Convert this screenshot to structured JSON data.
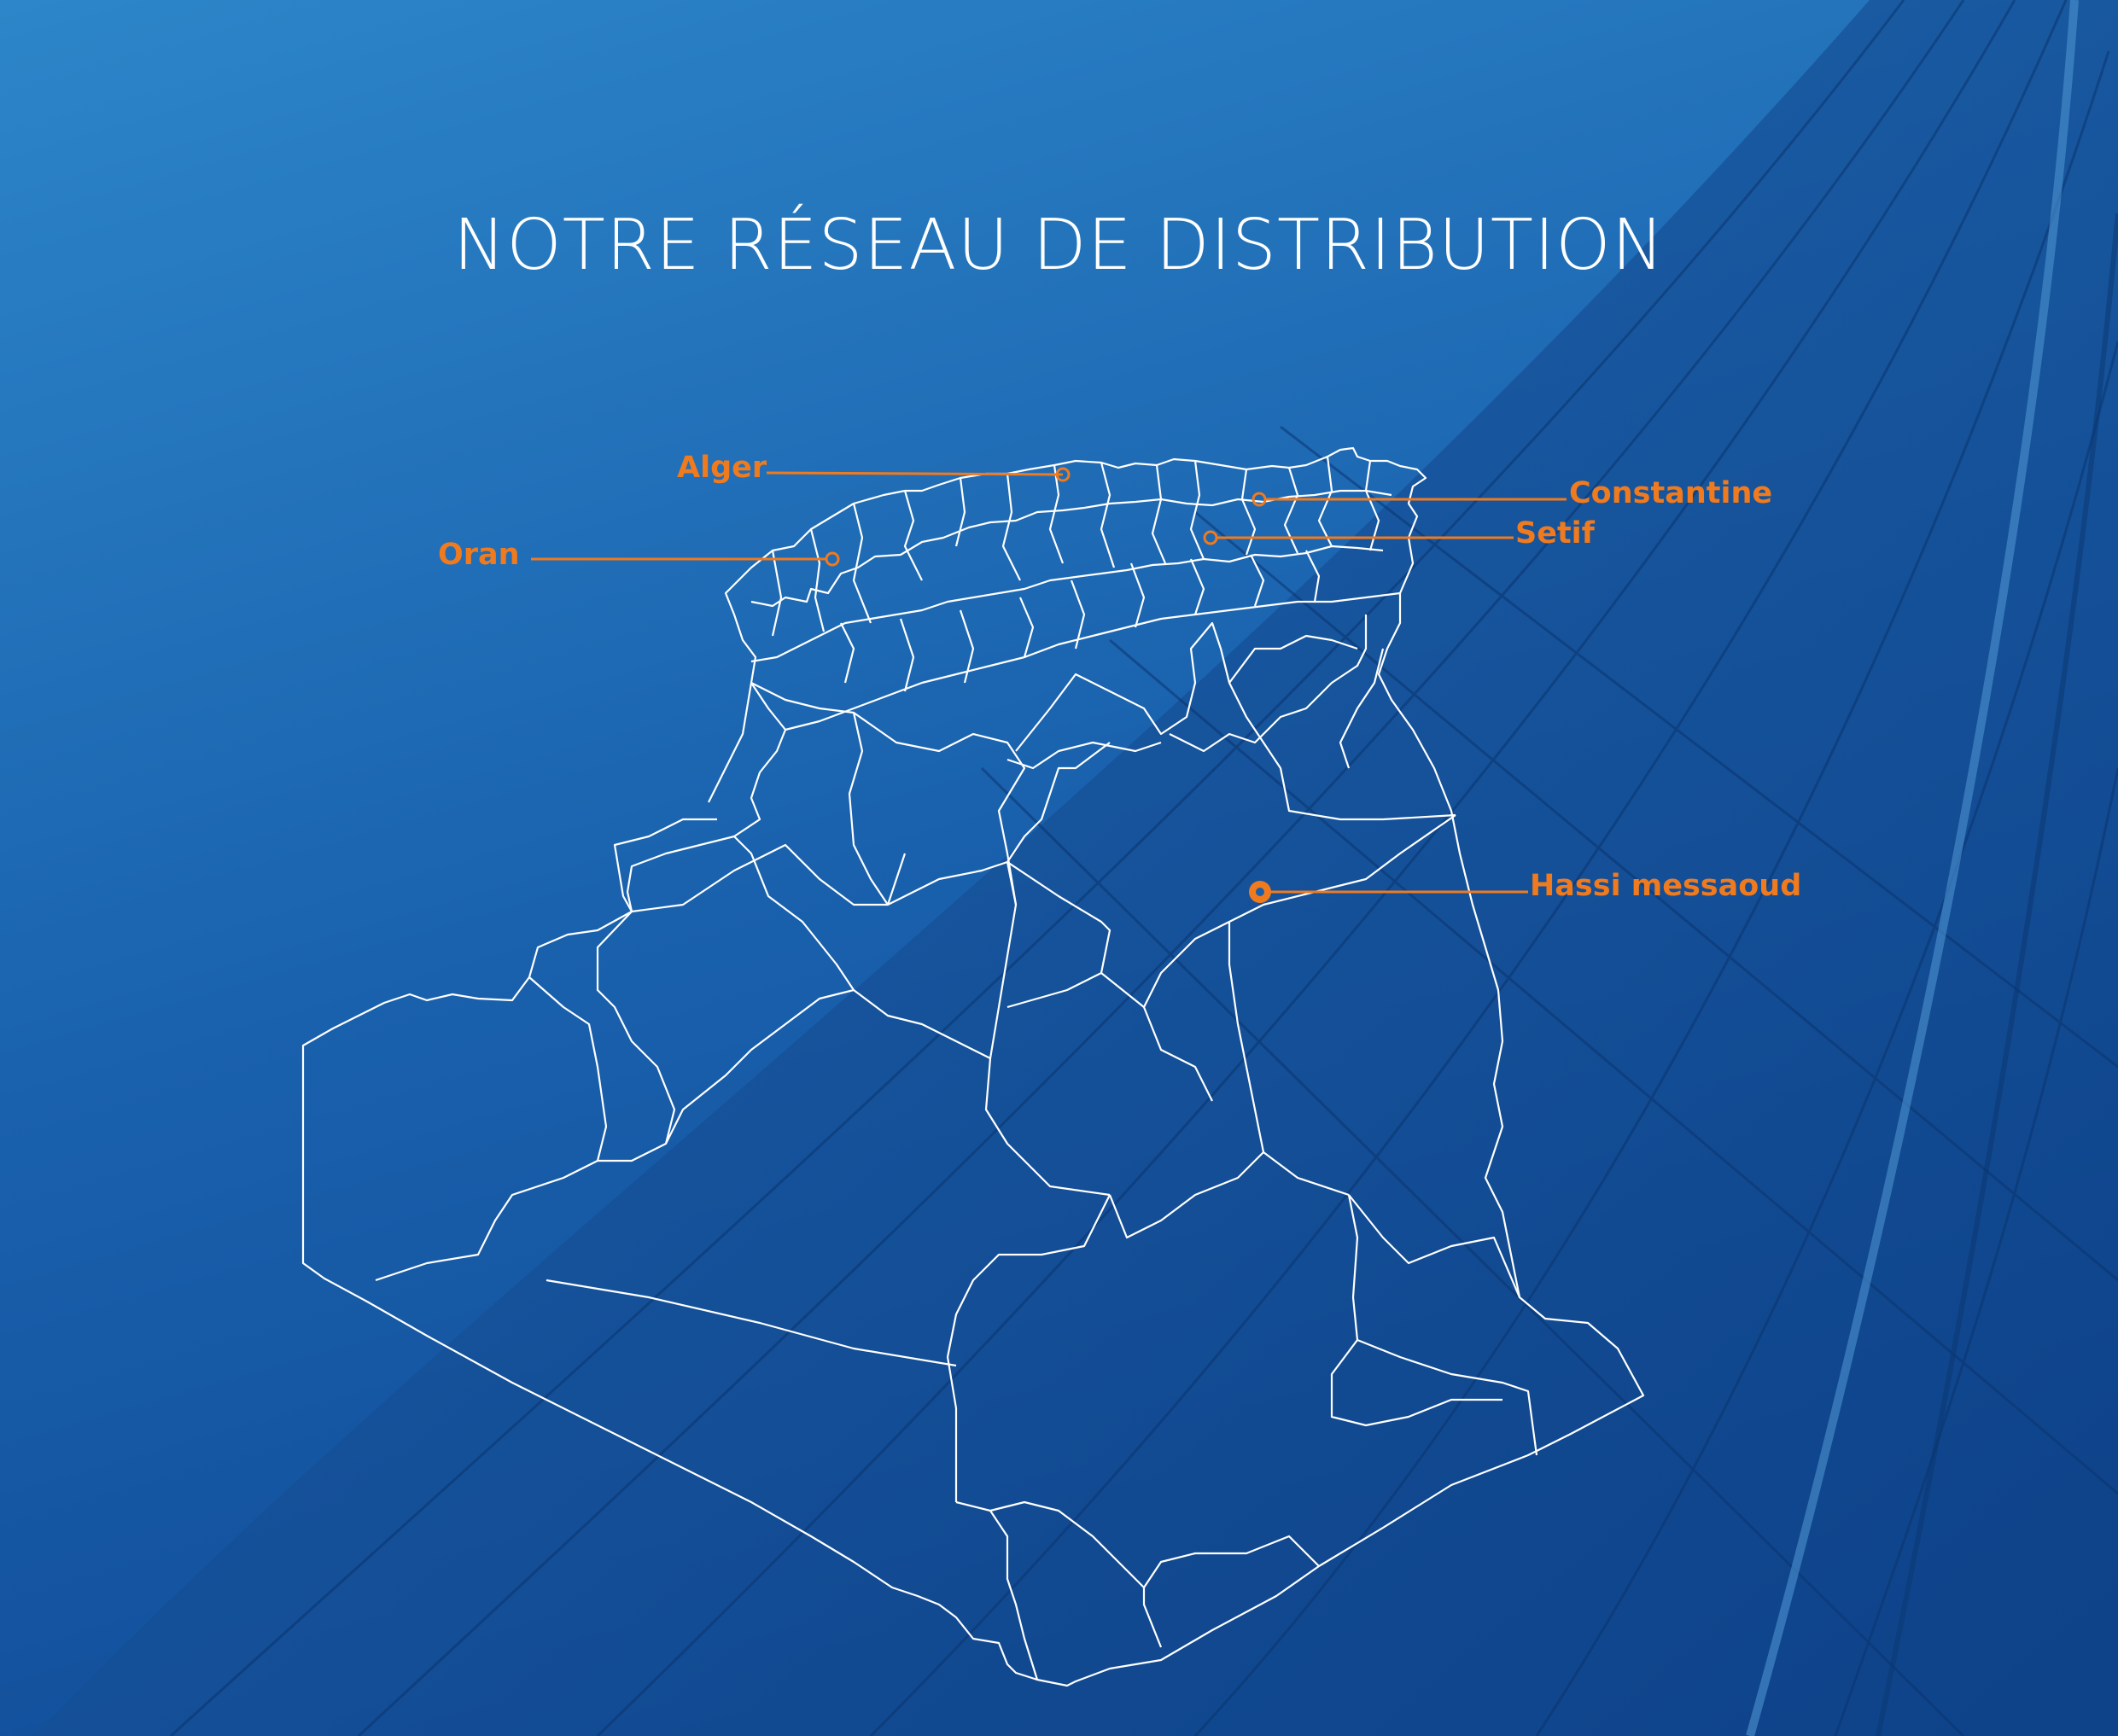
{
  "title": "NOTRE RÉSEAU DE DISTRIBUTION",
  "accent_color": "#f07a1e",
  "outline_color": "#ffffff",
  "background": {
    "top": "#2a84c8",
    "bottom": "#0f4a95"
  },
  "cities": [
    {
      "key": "alger",
      "name": "Alger"
    },
    {
      "key": "oran",
      "name": "Oran"
    },
    {
      "key": "constantine",
      "name": "Constantine"
    },
    {
      "key": "setif",
      "name": "Setif"
    },
    {
      "key": "hassi",
      "name": "Hassi messaoud"
    }
  ]
}
